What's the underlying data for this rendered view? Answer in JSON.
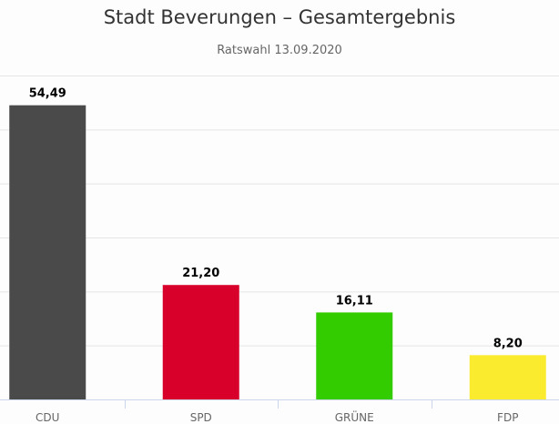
{
  "chart_data": {
    "type": "bar",
    "title": "Stadt Beverungen – Gesamtergebnis",
    "subtitle": "Ratswahl 13.09.2020",
    "categories": [
      "CDU",
      "SPD",
      "GRÜNE",
      "FDP"
    ],
    "values": [
      54.49,
      21.2,
      16.11,
      8.2
    ],
    "data_labels": [
      "54,49",
      "21,20",
      "16,11",
      "8,20"
    ],
    "colors": [
      "#4a4a4a",
      "#d8002b",
      "#33cc00",
      "#faeb2e"
    ],
    "xlabel": "",
    "ylabel": "",
    "ylim": [
      0,
      60
    ],
    "yticks": [
      0,
      10,
      20,
      30,
      40,
      50,
      60
    ],
    "grid": true,
    "legend": "none"
  }
}
